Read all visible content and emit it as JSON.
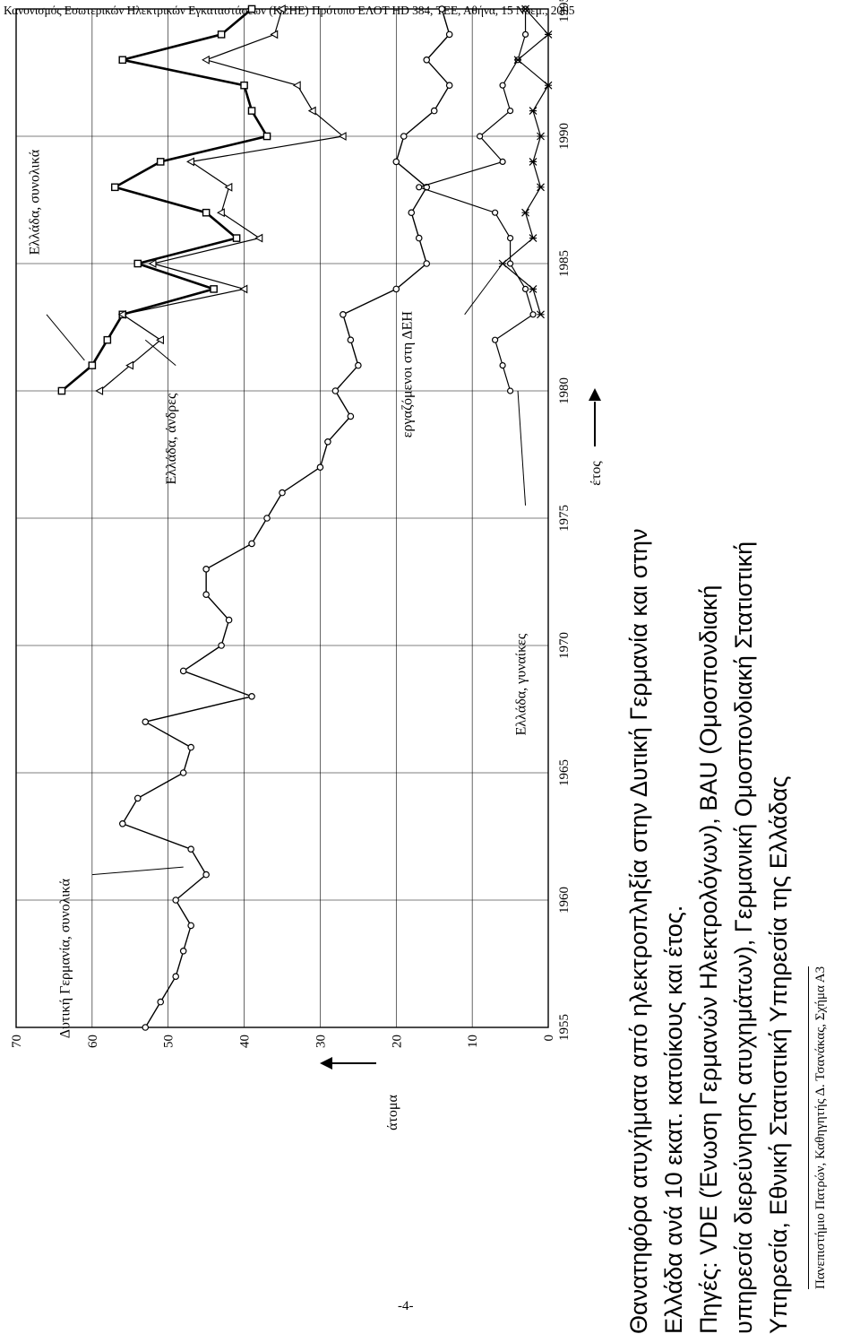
{
  "header": "Κανονισμός Εσωτερικών Ηλεκτρικών Εγκαταστάσεων (ΚΕΗΕ) Πρότυπο ΕΛΟΤ HD 384, ΤΕΕ, Αθήνα, 15 Νοεμ., 2005",
  "caption": [
    "Θανατηφόρα ατυχήματα από ηλεκτροπληξία στην Δυτική Γερμανία και στην",
    "Ελλάδα ανά 10 εκατ. κατοίκους και έτος.",
    "Πηγές: VDE (Ένωση Γερμανών Ηλεκτρολόγων), BAU (Ομοσπονδιακή",
    "υπηρεσία διερεύνησης ατυχημάτων), Γερμανική Ομοσπονδιακή Στατιστική",
    "Υπηρεσία, Εθνική Στατιστική Υπηρεσία της Ελλάδας"
  ],
  "footer": "Πανεπιστήμιο Πατρών, Καθηγητής Δ. Τσανάκας, Σχήμα Α3",
  "page_number": "-4-",
  "chart_data": {
    "type": "line",
    "xlabel": "έτος",
    "ylabel": "άτομα",
    "xlim": [
      1955,
      1995
    ],
    "ylim": [
      0,
      70
    ],
    "x_ticks": [
      "1955",
      "1960",
      "1965",
      "1970",
      "1975",
      "1980",
      "1985",
      "1990",
      "1995"
    ],
    "y_ticks": [
      "0",
      "10",
      "20",
      "30",
      "40",
      "50",
      "60",
      "70"
    ],
    "series": [
      {
        "name": "Δυτική Γερμανία, συνολικά",
        "x": [
          1955,
          1956,
          1957,
          1958,
          1959,
          1960,
          1961,
          1962,
          1963,
          1964,
          1965,
          1966,
          1967,
          1968,
          1969,
          1970,
          1971,
          1972,
          1973,
          1974,
          1975,
          1976,
          1977,
          1978,
          1979,
          1980,
          1981,
          1982,
          1983,
          1984,
          1985,
          1986,
          1987,
          1988,
          1989,
          1990,
          1991,
          1992,
          1993,
          1994,
          1995
        ],
        "y": [
          53,
          51,
          49,
          48,
          47,
          49,
          45,
          47,
          56,
          54,
          48,
          47,
          53,
          39,
          48,
          43,
          42,
          45,
          45,
          39,
          37,
          35,
          30,
          29,
          26,
          28,
          25,
          26,
          27,
          20,
          16,
          17,
          18,
          16,
          20,
          19,
          15,
          13,
          16,
          13,
          14
        ]
      },
      {
        "name": "Ελλάδα, συνολικά",
        "x": [
          1980,
          1981,
          1982,
          1983,
          1984,
          1985,
          1986,
          1987,
          1988,
          1989,
          1990,
          1991,
          1992,
          1993,
          1994,
          1995
        ],
        "y": [
          64,
          60,
          58,
          56,
          44,
          54,
          41,
          45,
          57,
          51,
          37,
          39,
          40,
          56,
          43,
          39
        ]
      },
      {
        "name": "Ελλάδα, άνδρες",
        "x": [
          1980,
          1981,
          1982,
          1983,
          1984,
          1985,
          1986,
          1987,
          1988,
          1989,
          1990,
          1991,
          1992,
          1993,
          1994,
          1995
        ],
        "y": [
          59,
          55,
          51,
          56,
          40,
          52,
          38,
          43,
          42,
          47,
          27,
          31,
          33,
          45,
          36,
          35
        ]
      },
      {
        "name": "Ελλάδα, γυναίκες",
        "x": [
          1980,
          1981,
          1982,
          1983,
          1984,
          1985,
          1986,
          1987,
          1988,
          1989,
          1990,
          1991,
          1992,
          1993,
          1994,
          1995
        ],
        "y": [
          5,
          6,
          7,
          2,
          3,
          5,
          5,
          7,
          17,
          6,
          9,
          5,
          6,
          4,
          3,
          3
        ]
      },
      {
        "name": "εργαζόμενοι στη ΔΕΗ",
        "x": [
          1983,
          1984,
          1985,
          1986,
          1987,
          1988,
          1989,
          1990,
          1991,
          1992,
          1993,
          1994,
          1995
        ],
        "y": [
          1,
          2,
          6,
          2,
          3,
          1,
          2,
          1,
          2,
          0,
          4,
          0,
          3
        ]
      }
    ],
    "annotations": [
      "Δυτική Γερμανία, συνολικά",
      "Ελλάδα, συνολικά",
      "Ελλάδα, άνδρες",
      "Ελλάδα, γυναίκες",
      "εργαζόμενοι στη ΔΕΗ"
    ]
  }
}
